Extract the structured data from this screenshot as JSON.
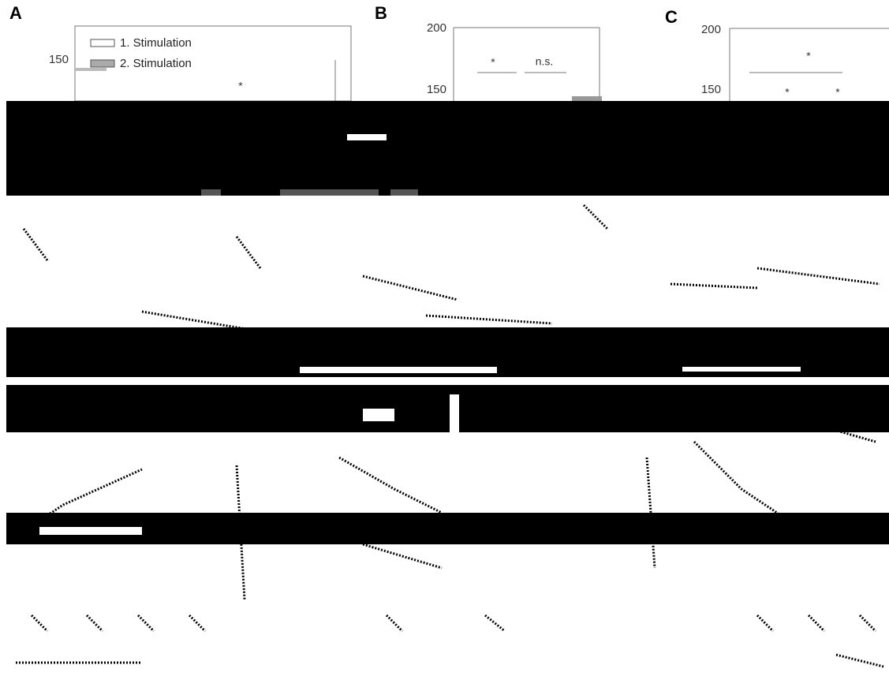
{
  "panels": [
    {
      "label": "A",
      "ticks": [
        "150"
      ],
      "legend": [
        "1. Stimulation",
        "2. Stimulation"
      ],
      "annotations": [
        "*"
      ]
    },
    {
      "label": "B",
      "ticks": [
        "200",
        "150"
      ],
      "annotations": [
        "*",
        "n.s."
      ]
    },
    {
      "label": "C",
      "ticks": [
        "200",
        "150"
      ],
      "annotations": [
        "*",
        "*",
        "*"
      ]
    }
  ]
}
